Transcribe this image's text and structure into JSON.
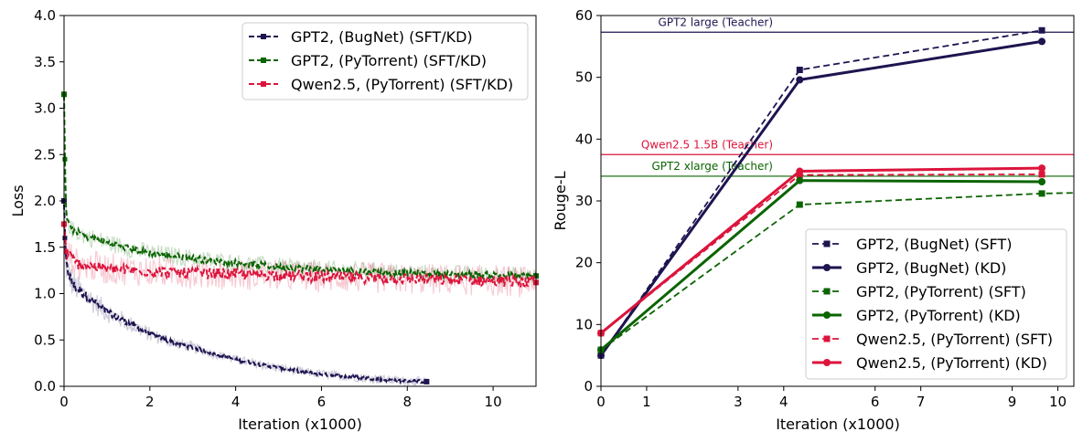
{
  "chart_data": [
    {
      "type": "line",
      "title": "",
      "xlabel": "Iteration (x1000)",
      "ylabel": "Loss",
      "xlim": [
        0,
        11
      ],
      "ylim": [
        0,
        4.0
      ],
      "xticks": [
        "0",
        "2",
        "4",
        "6",
        "8",
        "10"
      ],
      "yticks": [
        "0.0",
        "0.5",
        "1.0",
        "1.5",
        "2.0",
        "2.5",
        "3.0",
        "3.5",
        "4.0"
      ],
      "legend_position": "top-right",
      "series": [
        {
          "name": "GPT2, (BugNet) (SFT/KD)",
          "color": "#1e1450",
          "style": "dashed-square",
          "end_x": 8.45,
          "points": [
            [
              0,
              2.0
            ],
            [
              0.02,
              1.6
            ],
            [
              0.05,
              1.3
            ],
            [
              0.2,
              1.1
            ],
            [
              0.5,
              0.98
            ],
            [
              1,
              0.8
            ],
            [
              1.5,
              0.68
            ],
            [
              2,
              0.56
            ],
            [
              2.5,
              0.48
            ],
            [
              3,
              0.42
            ],
            [
              3.5,
              0.35
            ],
            [
              4,
              0.29
            ],
            [
              4.5,
              0.24
            ],
            [
              5,
              0.2
            ],
            [
              5.5,
              0.16
            ],
            [
              6,
              0.13
            ],
            [
              6.5,
              0.11
            ],
            [
              7,
              0.09
            ],
            [
              7.5,
              0.07
            ],
            [
              8,
              0.06
            ],
            [
              8.45,
              0.05
            ]
          ]
        },
        {
          "name": "GPT2, (PyTorrent) (SFT/KD)",
          "color": "#0a6400",
          "style": "dashed-square",
          "end_x": 11,
          "points": [
            [
              0,
              3.15
            ],
            [
              0.02,
              2.45
            ],
            [
              0.05,
              1.85
            ],
            [
              0.15,
              1.7
            ],
            [
              0.5,
              1.62
            ],
            [
              1,
              1.55
            ],
            [
              1.5,
              1.49
            ],
            [
              2,
              1.44
            ],
            [
              3,
              1.38
            ],
            [
              4,
              1.33
            ],
            [
              5,
              1.29
            ],
            [
              6,
              1.26
            ],
            [
              7,
              1.24
            ],
            [
              8,
              1.22
            ],
            [
              9,
              1.21
            ],
            [
              10,
              1.2
            ],
            [
              11,
              1.19
            ]
          ]
        },
        {
          "name": "Qwen2.5, (PyTorrent) (SFT/KD)",
          "color": "#dc143c",
          "style": "dashed-square",
          "end_x": 11,
          "points": [
            [
              0,
              1.75
            ],
            [
              0.05,
              1.45
            ],
            [
              0.3,
              1.32
            ],
            [
              1,
              1.27
            ],
            [
              2,
              1.24
            ],
            [
              3,
              1.22
            ],
            [
              4,
              1.21
            ],
            [
              5,
              1.2
            ],
            [
              6,
              1.18
            ],
            [
              7,
              1.17
            ],
            [
              8,
              1.16
            ],
            [
              9,
              1.15
            ],
            [
              10,
              1.14
            ],
            [
              11,
              1.12
            ]
          ]
        }
      ]
    },
    {
      "type": "line",
      "title": "",
      "xlabel": "Iteration (x1000)",
      "ylabel": "Rouge-L",
      "xlim": [
        0,
        10.35
      ],
      "ylim": [
        0,
        60
      ],
      "xticks": [
        "0",
        "1",
        "3",
        "4",
        "6",
        "7",
        "9",
        "10"
      ],
      "xtick_values": [
        0,
        1,
        3,
        4,
        6,
        7,
        9,
        10
      ],
      "yticks": [
        "0",
        "10",
        "20",
        "30",
        "40",
        "50",
        "60"
      ],
      "legend_position": "lower-right",
      "reference_lines": [
        {
          "label": "GPT2 large (Teacher)",
          "y": 57.3,
          "color": "#1e1450"
        },
        {
          "label": "Qwen2.5 1.5B (Teacher)",
          "y": 37.5,
          "color": "#dc143c"
        },
        {
          "label": "GPT2 xlarge (Teacher)",
          "y": 34.0,
          "color": "#0a6400"
        }
      ],
      "series": [
        {
          "name": "GPT2, (BugNet) (SFT)",
          "color": "#1e1450",
          "style": "dashed-square",
          "x": [
            0,
            4.35,
            9.65
          ],
          "y": [
            5.0,
            51.2,
            57.6
          ]
        },
        {
          "name": "GPT2, (BugNet) (KD)",
          "color": "#1e1450",
          "style": "solid-circle",
          "x": [
            0,
            4.35,
            9.65
          ],
          "y": [
            5.0,
            49.6,
            55.8
          ]
        },
        {
          "name": "GPT2, (PyTorrent) (SFT)",
          "color": "#0a6400",
          "style": "dashed-square",
          "x": [
            0,
            4.35,
            9.65,
            10.35
          ],
          "y": [
            5.9,
            29.4,
            31.2,
            31.3
          ]
        },
        {
          "name": "GPT2, (PyTorrent) (KD)",
          "color": "#0a6400",
          "style": "solid-circle",
          "x": [
            0,
            4.35,
            9.65
          ],
          "y": [
            5.9,
            33.3,
            33.1
          ]
        },
        {
          "name": "Qwen2.5, (PyTorrent) (SFT)",
          "color": "#dc143c",
          "style": "dashed-square",
          "x": [
            0,
            4.35,
            9.65
          ],
          "y": [
            8.6,
            34.2,
            34.3
          ]
        },
        {
          "name": "Qwen2.5, (PyTorrent) (KD)",
          "color": "#dc143c",
          "style": "solid-circle",
          "x": [
            0,
            4.35,
            9.65
          ],
          "y": [
            8.6,
            34.8,
            35.3
          ]
        }
      ]
    }
  ]
}
